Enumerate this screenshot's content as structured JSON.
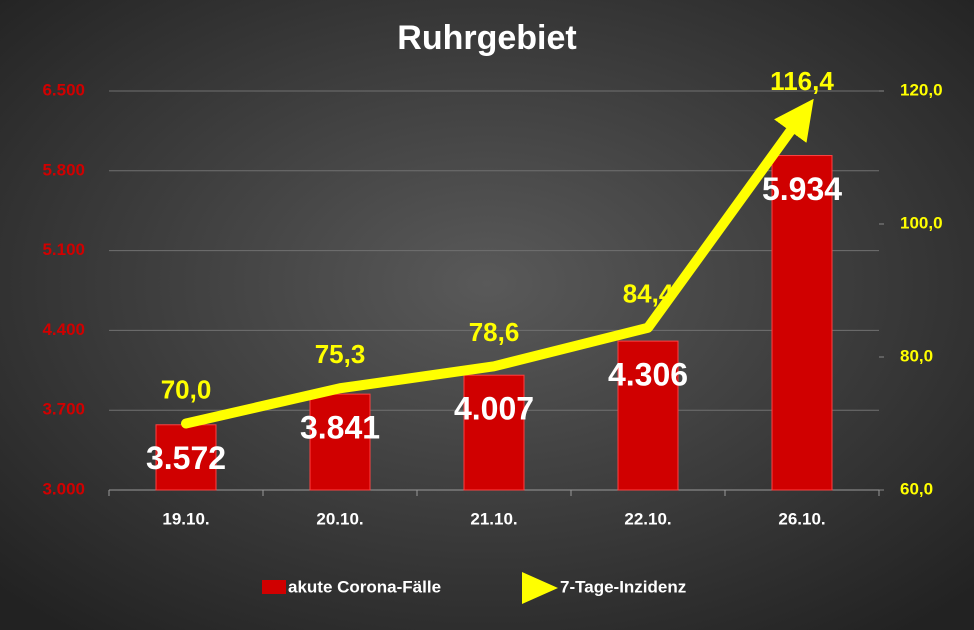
{
  "chart_data": {
    "type": "bar",
    "title": "Ruhrgebiet",
    "categories": [
      "19.10.",
      "20.10.",
      "21.10.",
      "22.10.",
      "26.10."
    ],
    "series": [
      {
        "name": "akute Corona-Fälle",
        "type": "bar",
        "color": "#d00000",
        "values": [
          3572,
          3841,
          4007,
          4306,
          5934
        ],
        "value_labels": [
          "3.572",
          "3.841",
          "4.007",
          "4.306",
          "5.934"
        ]
      },
      {
        "name": "7-Tage-Inzidenz",
        "type": "line",
        "axis": "y2",
        "color": "#ffff00",
        "values": [
          70.0,
          75.3,
          78.6,
          84.4,
          116.4
        ],
        "value_labels": [
          "70,0",
          "75,3",
          "78,6",
          "84,4",
          "116,4"
        ]
      }
    ],
    "ylim": [
      3000,
      6500
    ],
    "yticks": [
      {
        "value": 3000,
        "label": "3.000"
      },
      {
        "value": 3700,
        "label": "3.700"
      },
      {
        "value": 4400,
        "label": "4.400"
      },
      {
        "value": 5100,
        "label": "5.100"
      },
      {
        "value": 5800,
        "label": "5.800"
      },
      {
        "value": 6500,
        "label": "6.500"
      }
    ],
    "y2lim": [
      60,
      120
    ],
    "y2ticks": [
      {
        "value": 60,
        "label": "60,0"
      },
      {
        "value": 80,
        "label": "80,0"
      },
      {
        "value": 100,
        "label": "100,0"
      },
      {
        "value": 120,
        "label": "120,0"
      }
    ],
    "grid": true,
    "legend": "bottom"
  }
}
